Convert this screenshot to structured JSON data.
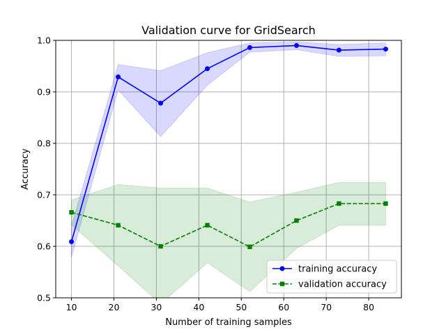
{
  "chart_data": {
    "type": "line",
    "title": "Validation curve for GridSearch",
    "xlabel": "Number of training samples",
    "ylabel": "Accuracy",
    "xlim": [
      6.3,
      87.7
    ],
    "ylim": [
      0.5,
      1.0
    ],
    "xticks": [
      10,
      20,
      30,
      40,
      50,
      60,
      70,
      80
    ],
    "yticks": [
      0.5,
      0.6,
      0.7,
      0.8,
      0.9,
      1.0
    ],
    "xtick_labels": [
      "10",
      "20",
      "30",
      "40",
      "50",
      "60",
      "70",
      "80"
    ],
    "ytick_labels": [
      "0.5",
      "0.6",
      "0.7",
      "0.8",
      "0.9",
      "1.0"
    ],
    "grid": true,
    "legend_position": "lower-right",
    "x": [
      10,
      21,
      31,
      42,
      52,
      63,
      73,
      84
    ],
    "series": [
      {
        "name": "training accuracy",
        "values": [
          0.609,
          0.929,
          0.878,
          0.945,
          0.986,
          0.99,
          0.981,
          0.983
        ],
        "lower": [
          0.579,
          0.904,
          0.813,
          0.913,
          0.977,
          0.982,
          0.969,
          0.97
        ],
        "upper": [
          0.64,
          0.953,
          0.941,
          0.976,
          0.995,
          0.997,
          0.992,
          0.995
        ],
        "color": "#0000ff",
        "band_color": "#0000ff",
        "marker": "circle",
        "line_style": "solid"
      },
      {
        "name": "validation accuracy",
        "values": [
          0.666,
          0.641,
          0.6,
          0.641,
          0.599,
          0.65,
          0.683,
          0.683
        ],
        "lower": [
          0.642,
          0.562,
          0.488,
          0.568,
          0.512,
          0.596,
          0.641,
          0.641
        ],
        "upper": [
          0.69,
          0.72,
          0.713,
          0.713,
          0.686,
          0.705,
          0.724,
          0.724
        ],
        "color": "#008000",
        "band_color": "#008000",
        "marker": "square",
        "line_style": "dashed"
      }
    ]
  }
}
